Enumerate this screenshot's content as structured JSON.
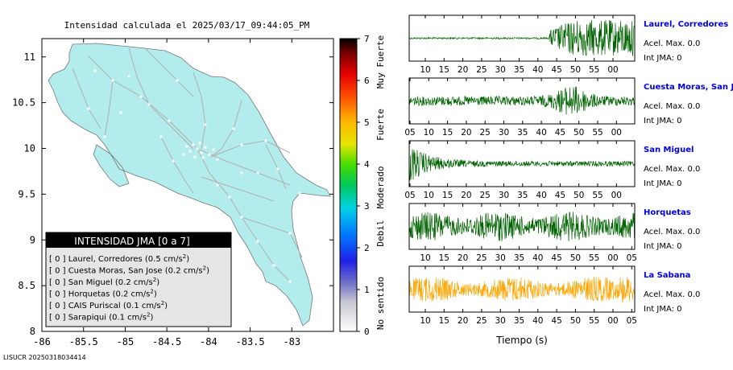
{
  "header": {
    "title": "Intensidad calculada el 2025/03/17_09:44:05_PM",
    "footer_id": "LISUCR 20250318034414"
  },
  "map": {
    "x_ticks": [
      "-86",
      "-85.5",
      "-85",
      "-84.5",
      "-84",
      "-83.5",
      "-83"
    ],
    "y_ticks": [
      "11",
      "10.5",
      "10",
      "9.5",
      "9",
      "8.5",
      "8"
    ],
    "land_color": "#b3ecec",
    "road_color": "#b0b0b0"
  },
  "legend": {
    "title": "INTENSIDAD JMA [0 a 7]",
    "stations": [
      {
        "prefix": "[ 0 ]",
        "name": "Laurel, Corredores",
        "value": "(0.5 cm/s",
        "sup": "2",
        "close": ")"
      },
      {
        "prefix": "[ 0 ]",
        "name": "Cuesta Moras, San Jose",
        "value": "(0.2 cm/s",
        "sup": "2",
        "close": ")"
      },
      {
        "prefix": "[ 0 ]",
        "name": "San Miguel",
        "value": "(0.2 cm/s",
        "sup": "2",
        "close": ")"
      },
      {
        "prefix": "[ 0 ]",
        "name": "Horquetas",
        "value": "(0.2 cm/s",
        "sup": "2",
        "close": ")"
      },
      {
        "prefix": "[ 0 ]",
        "name": "CAIS Puriscal",
        "value": "(0.1 cm/s",
        "sup": "2",
        "close": ")"
      },
      {
        "prefix": "[ 0 ]",
        "name": "Sarapiqui",
        "value": "(0.1 cm/s",
        "sup": "2",
        "close": ")"
      }
    ]
  },
  "colorbar": {
    "ticks": [
      "7",
      "6",
      "5",
      "4",
      "3",
      "2",
      "1",
      "0"
    ],
    "labels": [
      "Muy Fuerte",
      "Fuerte",
      "Moderado",
      "Debil",
      "No sentido"
    ]
  },
  "waveforms": {
    "xlabel": "Tiempo (s)",
    "panels": [
      {
        "station": "Laurel, Corredores",
        "acel": "Acel. Max. 0.0",
        "jma": "Int JMA: 0",
        "color": "#006400",
        "ticks": [
          "10",
          "15",
          "20",
          "25",
          "30",
          "35",
          "40",
          "45",
          "50",
          "55",
          "00"
        ],
        "tick_start": 10,
        "profile": "late"
      },
      {
        "station": "Cuesta Moras, San Jose",
        "acel": "Acel. Max. 0.0",
        "jma": "Int JMA: 0",
        "color": "#006400",
        "ticks": [
          "05",
          "10",
          "15",
          "20",
          "25",
          "30",
          "35",
          "40",
          "45",
          "50",
          "55",
          "00"
        ],
        "tick_start": 5,
        "profile": "midburst"
      },
      {
        "station": "San Miguel",
        "acel": "Acel. Max. 0.0",
        "jma": "Int JMA: 0",
        "color": "#006400",
        "ticks": [
          "05",
          "10",
          "15",
          "20",
          "25",
          "30",
          "35",
          "40",
          "45",
          "50",
          "55",
          "00"
        ],
        "tick_start": 5,
        "profile": "early"
      },
      {
        "station": "Horquetas",
        "acel": "Acel. Max. 0.0",
        "jma": "Int JMA: 0",
        "color": "#006400",
        "ticks": [
          "10",
          "15",
          "20",
          "25",
          "30",
          "35",
          "40",
          "45",
          "50",
          "55",
          "00",
          "05"
        ],
        "tick_start": 10,
        "profile": "steady"
      },
      {
        "station": "La Sabana",
        "acel": "Acel. Max. 0.0",
        "jma": "Int JMA: 0",
        "color": "#ffa500",
        "ticks": [
          "10",
          "15",
          "20",
          "25",
          "30",
          "35",
          "40",
          "45",
          "50",
          "55",
          "00",
          "05"
        ],
        "tick_start": 10,
        "profile": "steady-late"
      }
    ]
  },
  "chart_data": [
    {
      "type": "scatter",
      "title": "Intensidad calculada el 2025/03/17_09:44:05_PM",
      "xlabel": "",
      "ylabel": "",
      "xlim": [
        -86,
        -82.5
      ],
      "ylim": [
        8,
        11.2
      ],
      "x_ticks": [
        -86,
        -85.5,
        -85,
        -84.5,
        -84,
        -83.5,
        -83
      ],
      "y_ticks": [
        8,
        8.5,
        9,
        9.5,
        10,
        10.5,
        11
      ],
      "legend": "bottom-left",
      "colorbar_range": [
        0,
        7
      ]
    },
    {
      "type": "line",
      "xlabel": "Tiempo (s)",
      "series": [
        {
          "name": "Laurel, Corredores",
          "jma_intensity": 0,
          "acel_max": 0.0,
          "pga_cm_s2": 0.5
        },
        {
          "name": "Cuesta Moras, San Jose",
          "jma_intensity": 0,
          "acel_max": 0.0,
          "pga_cm_s2": 0.2
        },
        {
          "name": "San Miguel",
          "jma_intensity": 0,
          "acel_max": 0.0,
          "pga_cm_s2": 0.2
        },
        {
          "name": "Horquetas",
          "jma_intensity": 0,
          "acel_max": 0.0,
          "pga_cm_s2": 0.2
        },
        {
          "name": "La Sabana",
          "jma_intensity": 0,
          "acel_max": 0.0
        }
      ]
    }
  ]
}
